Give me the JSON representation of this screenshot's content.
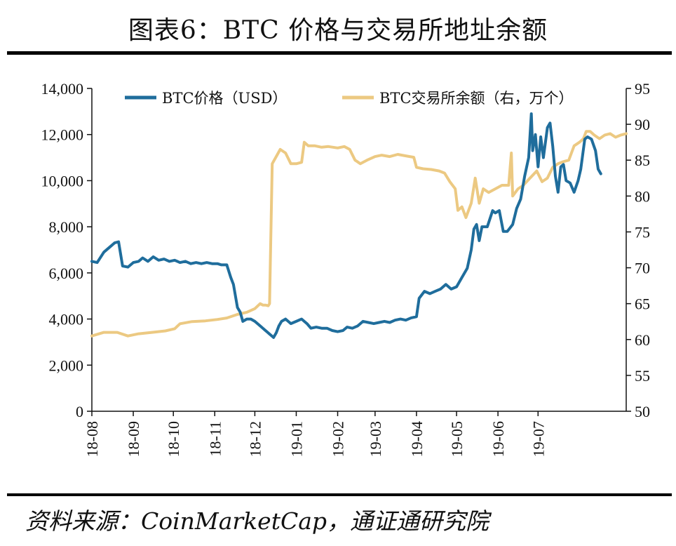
{
  "title": "图表6：BTC 价格与交易所地址余额",
  "source": "资料来源：CoinMarketCap，通证通研究院",
  "chart_data": {
    "type": "line",
    "x_ticks": [
      "18-08",
      "18-09",
      "18-10",
      "18-11",
      "18-12",
      "19-01",
      "19-02",
      "19-03",
      "19-04",
      "19-05",
      "19-06",
      "19-07"
    ],
    "y_left": {
      "range": [
        0,
        14000
      ],
      "ticks": [
        "0",
        "2,000",
        "4,000",
        "6,000",
        "8,000",
        "10,000",
        "12,000",
        "14,000"
      ]
    },
    "y_right": {
      "range": [
        50,
        95
      ],
      "ticks": [
        "50",
        "55",
        "60",
        "65",
        "70",
        "75",
        "80",
        "85",
        "90",
        "95"
      ]
    },
    "legend_placement": "top",
    "series": [
      {
        "name": "BTC价格（USD）",
        "axis": "left",
        "color": "#1f6d9c",
        "points": [
          [
            "2018-08-01",
            6500
          ],
          [
            "2018-08-05",
            6450
          ],
          [
            "2018-08-10",
            6900
          ],
          [
            "2018-08-14",
            7100
          ],
          [
            "2018-08-18",
            7300
          ],
          [
            "2018-08-21",
            7350
          ],
          [
            "2018-08-24",
            6300
          ],
          [
            "2018-08-28",
            6250
          ],
          [
            "2018-09-01",
            6450
          ],
          [
            "2018-09-05",
            6500
          ],
          [
            "2018-09-08",
            6650
          ],
          [
            "2018-09-12",
            6500
          ],
          [
            "2018-09-16",
            6700
          ],
          [
            "2018-09-20",
            6550
          ],
          [
            "2018-09-24",
            6600
          ],
          [
            "2018-09-28",
            6500
          ],
          [
            "2018-10-02",
            6550
          ],
          [
            "2018-10-06",
            6450
          ],
          [
            "2018-10-10",
            6500
          ],
          [
            "2018-10-14",
            6400
          ],
          [
            "2018-10-18",
            6450
          ],
          [
            "2018-10-22",
            6400
          ],
          [
            "2018-10-26",
            6450
          ],
          [
            "2018-10-30",
            6400
          ],
          [
            "2018-11-03",
            6400
          ],
          [
            "2018-11-06",
            6350
          ],
          [
            "2018-11-10",
            6350
          ],
          [
            "2018-11-13",
            5800
          ],
          [
            "2018-11-15",
            5500
          ],
          [
            "2018-11-18",
            4500
          ],
          [
            "2018-11-20",
            4300
          ],
          [
            "2018-11-22",
            3900
          ],
          [
            "2018-11-25",
            4000
          ],
          [
            "2018-11-28",
            4000
          ],
          [
            "2018-12-01",
            3900
          ],
          [
            "2018-12-05",
            3700
          ],
          [
            "2018-12-09",
            3500
          ],
          [
            "2018-12-13",
            3300
          ],
          [
            "2018-12-15",
            3200
          ],
          [
            "2018-12-17",
            3400
          ],
          [
            "2018-12-19",
            3700
          ],
          [
            "2018-12-21",
            3900
          ],
          [
            "2018-12-24",
            4000
          ],
          [
            "2018-12-28",
            3800
          ],
          [
            "2019-01-01",
            3900
          ],
          [
            "2019-01-05",
            4000
          ],
          [
            "2019-01-09",
            3800
          ],
          [
            "2019-01-12",
            3600
          ],
          [
            "2019-01-16",
            3650
          ],
          [
            "2019-01-20",
            3600
          ],
          [
            "2019-01-24",
            3600
          ],
          [
            "2019-01-28",
            3500
          ],
          [
            "2019-02-01",
            3450
          ],
          [
            "2019-02-05",
            3500
          ],
          [
            "2019-02-08",
            3650
          ],
          [
            "2019-02-12",
            3600
          ],
          [
            "2019-02-16",
            3700
          ],
          [
            "2019-02-20",
            3900
          ],
          [
            "2019-02-24",
            3850
          ],
          [
            "2019-02-28",
            3800
          ],
          [
            "2019-03-04",
            3850
          ],
          [
            "2019-03-08",
            3900
          ],
          [
            "2019-03-12",
            3850
          ],
          [
            "2019-03-16",
            3950
          ],
          [
            "2019-03-20",
            4000
          ],
          [
            "2019-03-24",
            3950
          ],
          [
            "2019-03-28",
            4050
          ],
          [
            "2019-04-01",
            4100
          ],
          [
            "2019-04-03",
            4900
          ],
          [
            "2019-04-07",
            5200
          ],
          [
            "2019-04-11",
            5100
          ],
          [
            "2019-04-15",
            5200
          ],
          [
            "2019-04-19",
            5300
          ],
          [
            "2019-04-23",
            5500
          ],
          [
            "2019-04-27",
            5300
          ],
          [
            "2019-05-01",
            5400
          ],
          [
            "2019-05-05",
            5800
          ],
          [
            "2019-05-09",
            6200
          ],
          [
            "2019-05-12",
            7000
          ],
          [
            "2019-05-14",
            7900
          ],
          [
            "2019-05-16",
            8100
          ],
          [
            "2019-05-18",
            7400
          ],
          [
            "2019-05-20",
            8000
          ],
          [
            "2019-05-24",
            8000
          ],
          [
            "2019-05-28",
            8700
          ],
          [
            "2019-05-30",
            8600
          ],
          [
            "2019-06-02",
            8700
          ],
          [
            "2019-06-05",
            7800
          ],
          [
            "2019-06-08",
            7800
          ],
          [
            "2019-06-12",
            8100
          ],
          [
            "2019-06-15",
            8800
          ],
          [
            "2019-06-18",
            9200
          ],
          [
            "2019-06-21",
            10200
          ],
          [
            "2019-06-24",
            11000
          ],
          [
            "2019-06-26",
            12900
          ],
          [
            "2019-06-27",
            11300
          ],
          [
            "2019-06-29",
            12000
          ],
          [
            "2019-07-01",
            10600
          ],
          [
            "2019-07-03",
            11900
          ],
          [
            "2019-07-05",
            11000
          ],
          [
            "2019-07-08",
            12300
          ],
          [
            "2019-07-10",
            12500
          ],
          [
            "2019-07-12",
            11500
          ],
          [
            "2019-07-14",
            10200
          ],
          [
            "2019-07-16",
            9500
          ],
          [
            "2019-07-18",
            10600
          ],
          [
            "2019-07-20",
            10700
          ],
          [
            "2019-07-22",
            10000
          ],
          [
            "2019-07-25",
            9900
          ],
          [
            "2019-07-28",
            9500
          ],
          [
            "2019-07-31",
            10000
          ],
          [
            "2019-08-02",
            10500
          ],
          [
            "2019-08-05",
            11800
          ],
          [
            "2019-08-07",
            11900
          ],
          [
            "2019-08-10",
            11800
          ],
          [
            "2019-08-13",
            11300
          ],
          [
            "2019-08-15",
            10500
          ],
          [
            "2019-08-17",
            10300
          ]
        ]
      },
      {
        "name": "BTC交易所余额（右，万个）",
        "axis": "right",
        "color": "#ecc982",
        "points": [
          [
            "2018-08-01",
            60.5
          ],
          [
            "2018-08-10",
            61
          ],
          [
            "2018-08-20",
            61
          ],
          [
            "2018-08-28",
            60.5
          ],
          [
            "2018-09-05",
            60.8
          ],
          [
            "2018-09-15",
            61
          ],
          [
            "2018-09-25",
            61.2
          ],
          [
            "2018-10-02",
            61.5
          ],
          [
            "2018-10-06",
            62.2
          ],
          [
            "2018-10-15",
            62.5
          ],
          [
            "2018-10-25",
            62.6
          ],
          [
            "2018-11-03",
            62.8
          ],
          [
            "2018-11-10",
            63
          ],
          [
            "2018-11-18",
            63.5
          ],
          [
            "2018-11-25",
            63.8
          ],
          [
            "2018-12-01",
            64.3
          ],
          [
            "2018-12-05",
            65
          ],
          [
            "2018-12-07",
            64.8
          ],
          [
            "2018-12-09",
            64.8
          ],
          [
            "2018-12-11",
            64.7
          ],
          [
            "2018-12-12",
            65
          ],
          [
            "2018-12-14",
            84.5
          ],
          [
            "2018-12-17",
            85.5
          ],
          [
            "2018-12-20",
            86.5
          ],
          [
            "2018-12-24",
            86
          ],
          [
            "2018-12-28",
            84.5
          ],
          [
            "2019-01-01",
            84.5
          ],
          [
            "2019-01-05",
            84.7
          ],
          [
            "2019-01-07",
            87.5
          ],
          [
            "2019-01-10",
            87
          ],
          [
            "2019-01-15",
            87
          ],
          [
            "2019-01-20",
            86.8
          ],
          [
            "2019-01-25",
            86.9
          ],
          [
            "2019-02-01",
            86.7
          ],
          [
            "2019-02-06",
            86.9
          ],
          [
            "2019-02-10",
            86.5
          ],
          [
            "2019-02-14",
            85
          ],
          [
            "2019-02-18",
            84.5
          ],
          [
            "2019-02-23",
            85
          ],
          [
            "2019-03-01",
            85.5
          ],
          [
            "2019-03-06",
            85.7
          ],
          [
            "2019-03-12",
            85.5
          ],
          [
            "2019-03-18",
            85.8
          ],
          [
            "2019-03-24",
            85.6
          ],
          [
            "2019-03-30",
            85.4
          ],
          [
            "2019-04-01",
            84
          ],
          [
            "2019-04-06",
            83.8
          ],
          [
            "2019-04-12",
            83.7
          ],
          [
            "2019-04-18",
            83.5
          ],
          [
            "2019-04-22",
            83.2
          ],
          [
            "2019-04-26",
            82
          ],
          [
            "2019-04-30",
            81
          ],
          [
            "2019-05-02",
            78
          ],
          [
            "2019-05-05",
            78.5
          ],
          [
            "2019-05-08",
            77
          ],
          [
            "2019-05-12",
            79
          ],
          [
            "2019-05-15",
            82.5
          ],
          [
            "2019-05-18",
            79
          ],
          [
            "2019-05-21",
            81
          ],
          [
            "2019-05-25",
            80.5
          ],
          [
            "2019-05-30",
            81
          ],
          [
            "2019-06-04",
            81.5
          ],
          [
            "2019-06-09",
            81.5
          ],
          [
            "2019-06-11",
            86
          ],
          [
            "2019-06-12",
            80
          ],
          [
            "2019-06-16",
            81
          ],
          [
            "2019-06-20",
            81.5
          ],
          [
            "2019-06-25",
            82.5
          ],
          [
            "2019-06-30",
            83.5
          ],
          [
            "2019-07-04",
            82
          ],
          [
            "2019-07-08",
            82.5
          ],
          [
            "2019-07-12",
            84
          ],
          [
            "2019-07-16",
            84.5
          ],
          [
            "2019-07-20",
            84.8
          ],
          [
            "2019-07-24",
            85
          ],
          [
            "2019-07-28",
            87
          ],
          [
            "2019-08-01",
            87.5
          ],
          [
            "2019-08-04",
            88
          ],
          [
            "2019-08-06",
            89
          ],
          [
            "2019-08-09",
            89
          ],
          [
            "2019-08-12",
            88.5
          ],
          [
            "2019-08-16",
            88
          ],
          [
            "2019-08-20",
            88.5
          ],
          [
            "2019-08-24",
            88.7
          ],
          [
            "2019-08-28",
            88.2
          ],
          [
            "2019-09-01",
            88.5
          ],
          [
            "2019-09-05",
            88.7
          ]
        ]
      }
    ]
  }
}
